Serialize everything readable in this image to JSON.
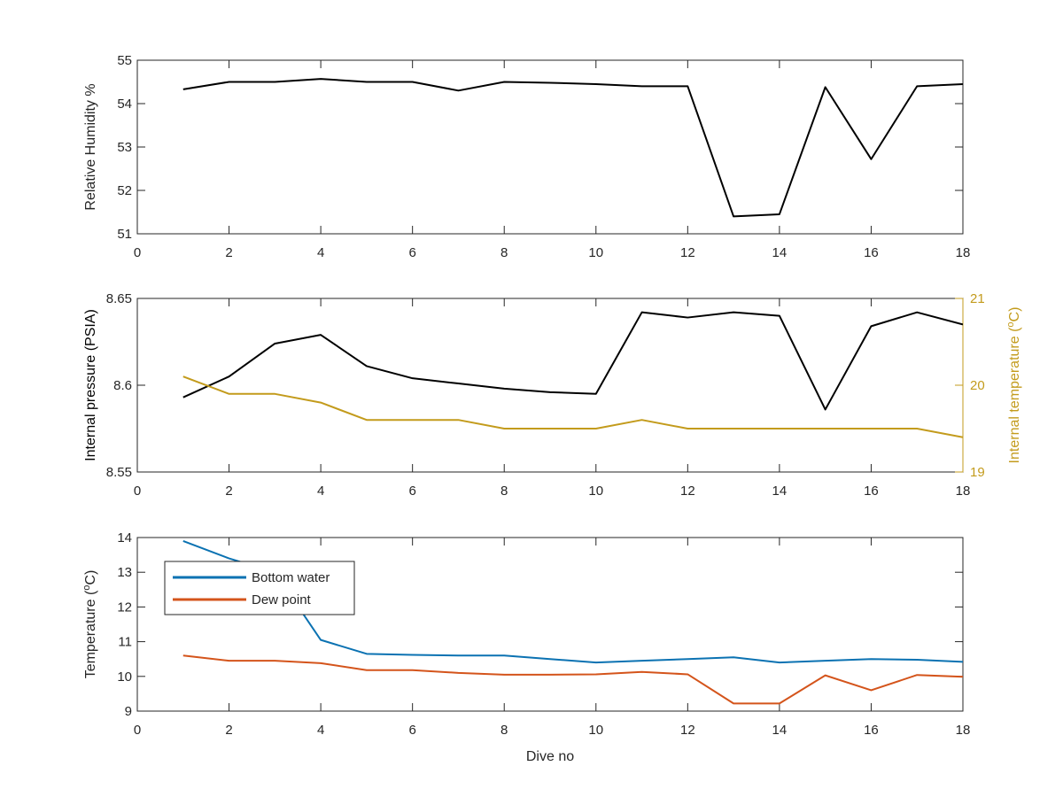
{
  "chart_data": [
    {
      "type": "line",
      "title": "",
      "xlabel": "",
      "ylabel": "Relative Humidity %",
      "xlim": [
        0,
        18
      ],
      "ylim": [
        51,
        55
      ],
      "xticks": [
        0,
        2,
        4,
        6,
        8,
        10,
        12,
        14,
        16,
        18
      ],
      "yticks": [
        51,
        52,
        53,
        54,
        55
      ],
      "grid": false,
      "series": [
        {
          "color": "#000000",
          "x": [
            1,
            2,
            3,
            4,
            5,
            6,
            7,
            8,
            9,
            10,
            11,
            12,
            13,
            14,
            15,
            16,
            17,
            18
          ],
          "values": [
            54.33,
            54.5,
            54.5,
            54.57,
            54.5,
            54.5,
            54.3,
            54.5,
            54.48,
            54.45,
            54.4,
            54.4,
            51.4,
            51.45,
            54.38,
            52.72,
            54.4,
            54.45
          ]
        }
      ]
    },
    {
      "type": "line",
      "title": "",
      "xlabel": "",
      "ylabel": "Internal pressure (PSIA)",
      "ylabel_right": "Internal temperature (°C)",
      "xlim": [
        0,
        18
      ],
      "ylim": [
        8.55,
        8.65
      ],
      "ylim_right": [
        19,
        21
      ],
      "xticks": [
        0,
        2,
        4,
        6,
        8,
        10,
        12,
        14,
        16,
        18
      ],
      "yticks": [
        "8.55",
        "8.6",
        "8.65"
      ],
      "yticks_right": [
        19,
        20,
        21
      ],
      "grid": false,
      "series": [
        {
          "color": "#000000",
          "axis": "left",
          "x": [
            1,
            2,
            3,
            4,
            5,
            6,
            7,
            8,
            9,
            10,
            11,
            12,
            13,
            14,
            15,
            16,
            17,
            18
          ],
          "values": [
            8.593,
            8.605,
            8.624,
            8.629,
            8.611,
            8.604,
            8.601,
            8.598,
            8.596,
            8.595,
            8.642,
            8.639,
            8.642,
            8.64,
            8.586,
            8.634,
            8.642,
            8.635
          ]
        },
        {
          "color": "#c39b1c",
          "axis": "right",
          "x": [
            1,
            2,
            3,
            4,
            5,
            6,
            7,
            8,
            9,
            10,
            11,
            12,
            13,
            14,
            15,
            16,
            17,
            18
          ],
          "values": [
            20.1,
            19.9,
            19.9,
            19.8,
            19.6,
            19.6,
            19.6,
            19.5,
            19.5,
            19.5,
            19.6,
            19.5,
            19.5,
            19.5,
            19.5,
            19.5,
            19.5,
            19.4
          ]
        }
      ]
    },
    {
      "type": "line",
      "title": "",
      "xlabel": "Dive no",
      "ylabel": "Temperature (°C)",
      "xlim": [
        0,
        18
      ],
      "ylim": [
        9,
        14
      ],
      "xticks": [
        0,
        2,
        4,
        6,
        8,
        10,
        12,
        14,
        16,
        18
      ],
      "yticks": [
        9,
        10,
        11,
        12,
        13,
        14
      ],
      "grid": false,
      "legend": "top-left",
      "series": [
        {
          "name": "Bottom water",
          "color": "#0b72b2",
          "x": [
            1,
            2,
            3,
            4,
            5,
            6,
            7,
            8,
            9,
            10,
            11,
            12,
            13,
            14,
            15,
            16,
            17,
            18
          ],
          "values": [
            13.9,
            13.4,
            13.0,
            11.05,
            10.65,
            10.62,
            10.6,
            10.6,
            10.5,
            10.4,
            10.45,
            10.5,
            10.55,
            10.4,
            10.45,
            10.5,
            10.48,
            10.42
          ]
        },
        {
          "name": "Dew point",
          "color": "#d4541b",
          "x": [
            1,
            2,
            3,
            4,
            5,
            6,
            7,
            8,
            9,
            10,
            11,
            12,
            13,
            14,
            15,
            16,
            17,
            18
          ],
          "values": [
            10.6,
            10.45,
            10.45,
            10.38,
            10.18,
            10.18,
            10.1,
            10.05,
            10.05,
            10.06,
            10.13,
            10.06,
            9.22,
            9.22,
            10.03,
            9.6,
            10.04,
            9.99
          ]
        }
      ]
    }
  ]
}
